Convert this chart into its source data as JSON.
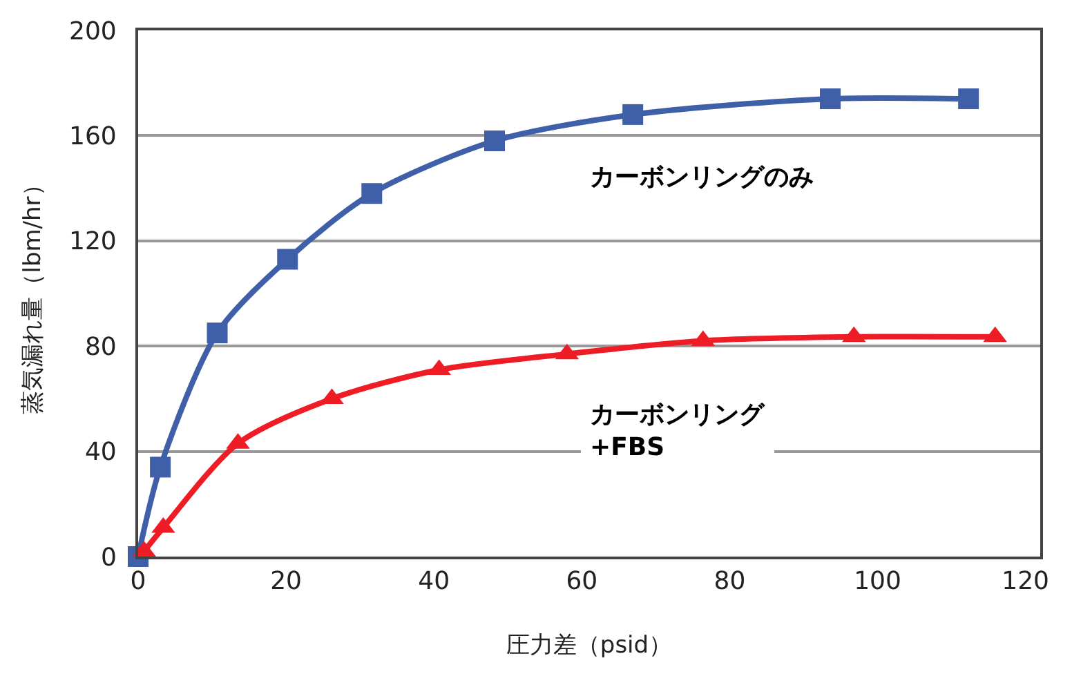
{
  "chart_data": {
    "type": "line",
    "xlabel": "圧力差（psid）",
    "ylabel": "蒸気漏れ量（lbm/hr）",
    "xlim": [
      0,
      122
    ],
    "xticks": [
      0,
      20,
      40,
      60,
      80,
      100,
      120
    ],
    "ylim": [
      0,
      200
    ],
    "yticks": [
      0,
      40,
      80,
      120,
      160,
      200
    ],
    "grid": "y",
    "legend": false,
    "line_style": "solid",
    "series": [
      {
        "name": "カーボンリングのみ",
        "color": "#3f60a8",
        "marker": "square",
        "x": [
          0,
          3,
          10.7,
          20.2,
          31.6,
          48.2,
          66.9,
          93.6,
          112.3
        ],
        "values": [
          0,
          34,
          85,
          113,
          138,
          158,
          168,
          174,
          174
        ]
      },
      {
        "name": "カーボンリング\n+FBS",
        "color": "#ee1c25",
        "marker": "triangle",
        "x": [
          0.8,
          3.4,
          13.5,
          26.2,
          40.7,
          58,
          76.4,
          96.8,
          115.9
        ],
        "values": [
          2,
          11,
          43,
          60,
          71,
          77,
          82,
          83.5,
          83.5
        ]
      }
    ]
  }
}
